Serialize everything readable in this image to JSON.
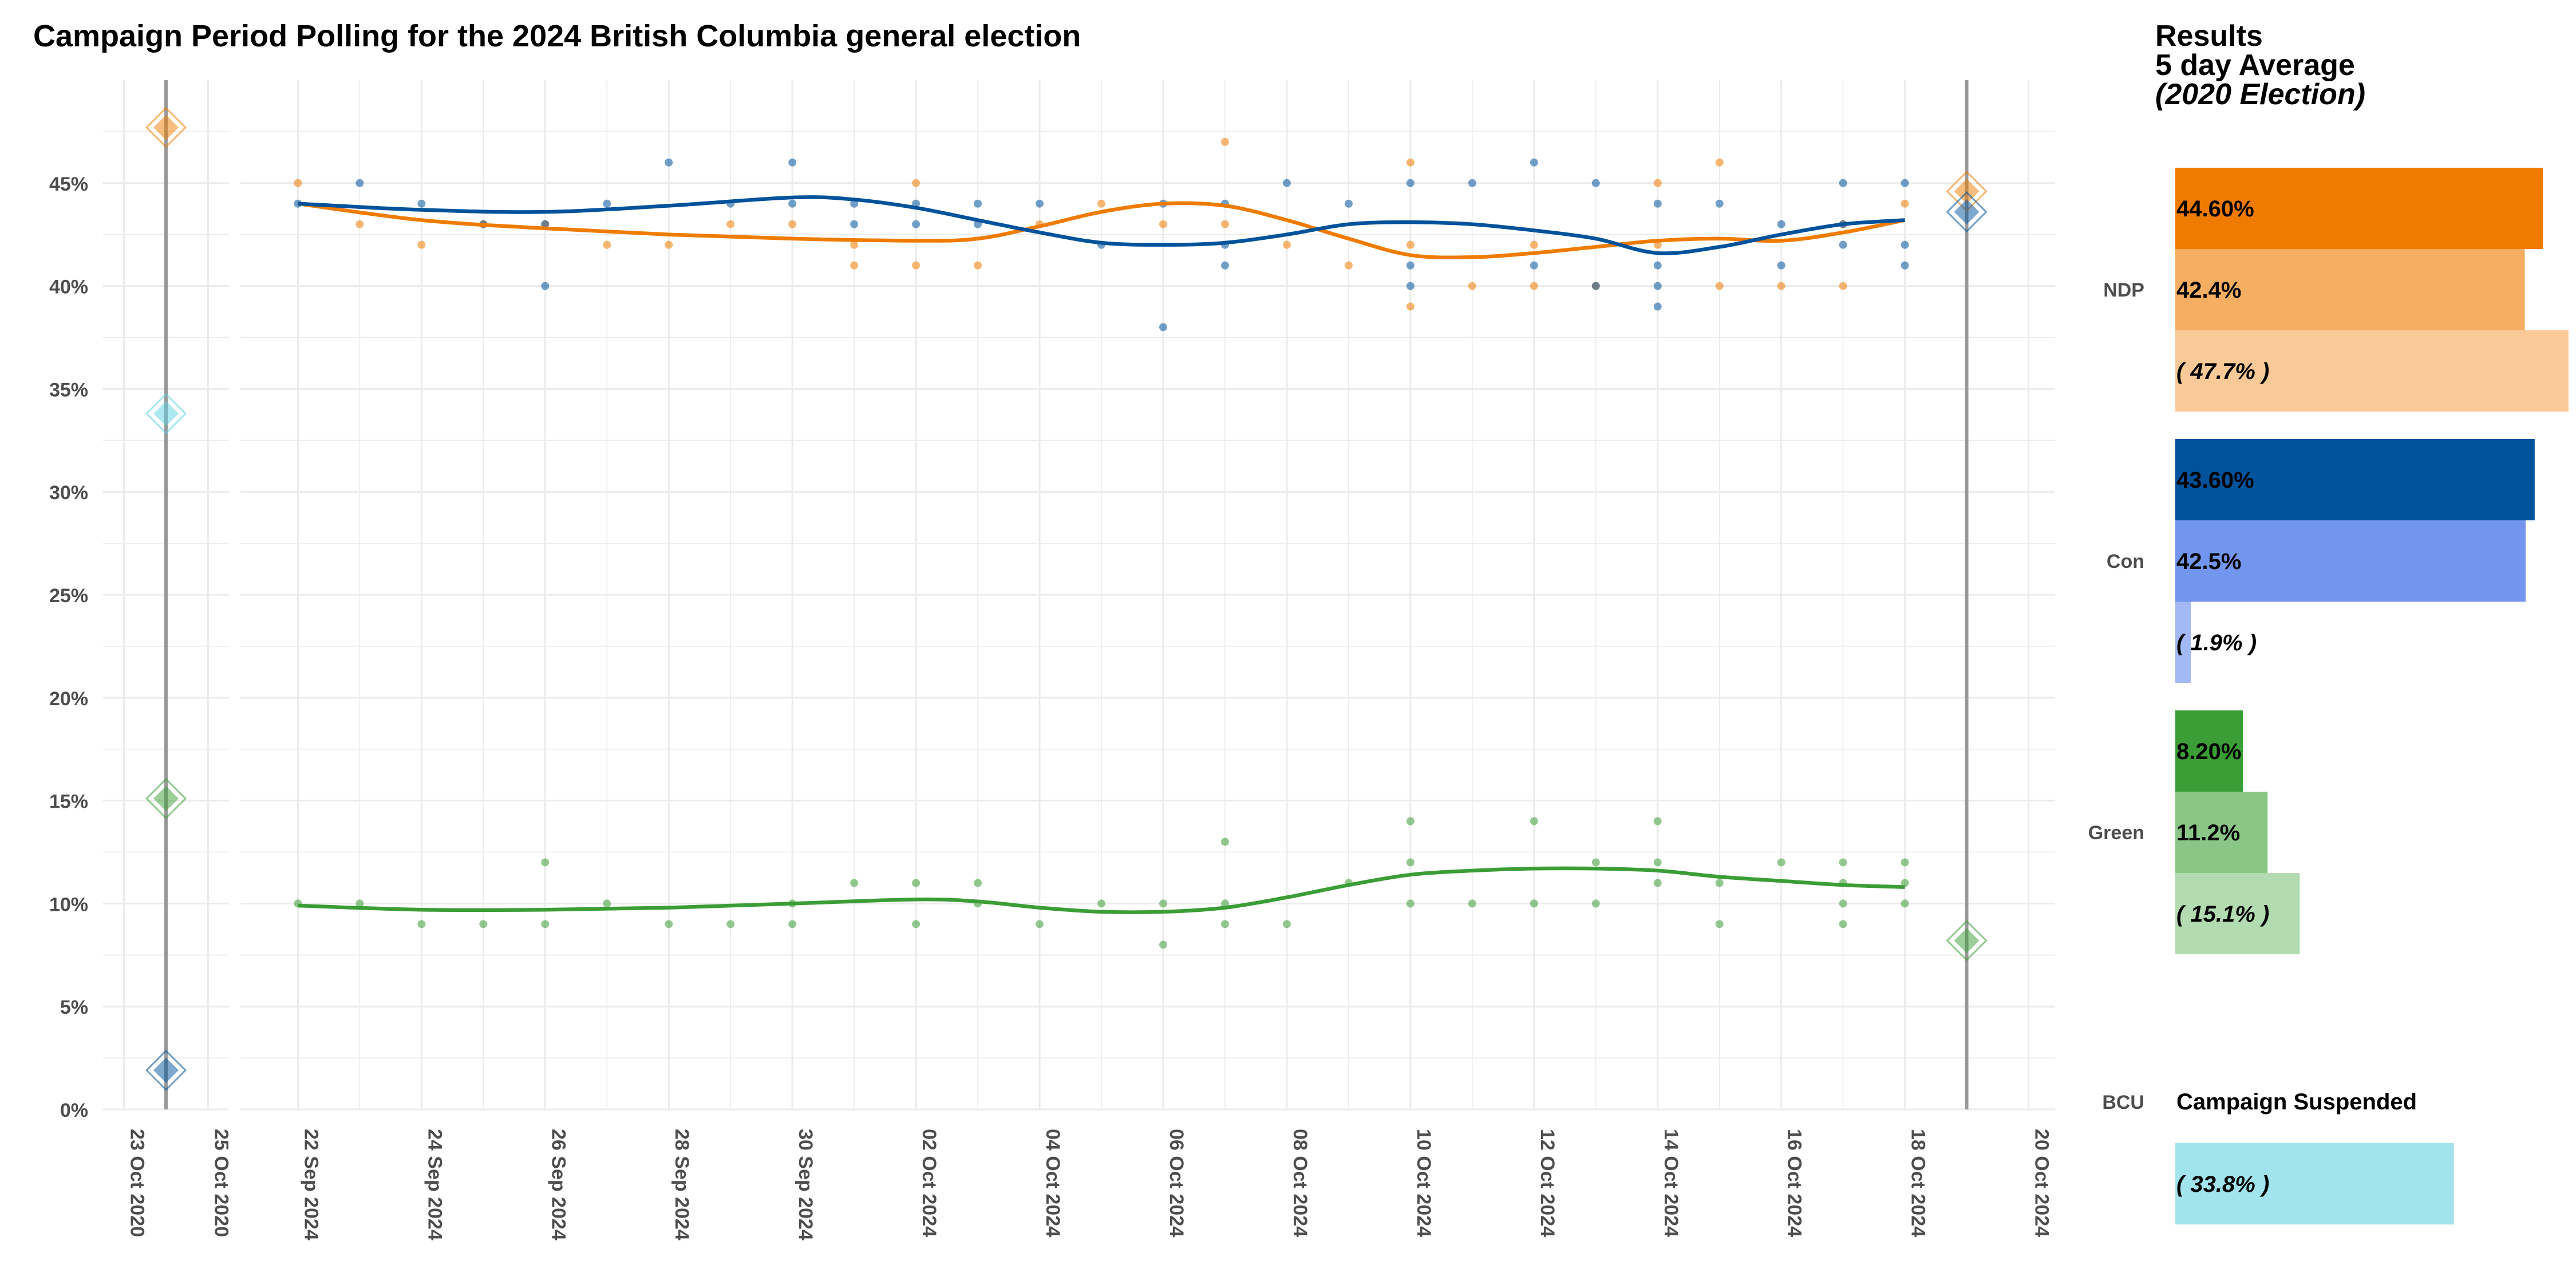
{
  "title": "Campaign Period Polling for the 2024 British Columbia general election",
  "colors": {
    "ndp": "#ef7b00",
    "con": "#00529b",
    "green": "#3a9d35",
    "bcu": "#5cd2e2",
    "grid": "#ebebeb",
    "axis_text": "#4d4d4d",
    "vline": "#999999"
  },
  "chart_data": [
    {
      "type": "scatter",
      "name": "2020 Election panel",
      "x_tick_labels": [
        "23 Oct 2020",
        "25 Oct 2020"
      ],
      "election_date_label": "24 Oct 2020",
      "ylim": [
        0,
        50
      ],
      "y_tick_labels": [
        "0%",
        "5%",
        "10%",
        "15%",
        "20%",
        "25%",
        "30%",
        "35%",
        "40%",
        "45%"
      ],
      "points": [
        {
          "party": "NDP",
          "value": 47.7
        },
        {
          "party": "BCU",
          "value": 33.8
        },
        {
          "party": "Green",
          "value": 15.1
        },
        {
          "party": "Con",
          "value": 1.9
        }
      ]
    },
    {
      "type": "line",
      "name": "Campaign polling panel",
      "x_tick_labels": [
        "22 Sep 2024",
        "24 Sep 2024",
        "26 Sep 2024",
        "28 Sep 2024",
        "30 Sep 2024",
        "02 Oct 2024",
        "04 Oct 2024",
        "06 Oct 2024",
        "08 Oct 2024",
        "10 Oct 2024",
        "12 Oct 2024",
        "14 Oct 2024",
        "16 Oct 2024",
        "18 Oct 2024",
        "20 Oct 2024"
      ],
      "election_day": "19 Oct 2024",
      "ylim": [
        0,
        50
      ],
      "polls": {
        "NDP": [
          [
            "22 Sep 2024",
            45
          ],
          [
            "23 Sep 2024",
            43
          ],
          [
            "24 Sep 2024",
            42
          ],
          [
            "25 Sep 2024",
            43
          ],
          [
            "26 Sep 2024",
            43
          ],
          [
            "27 Sep 2024",
            42
          ],
          [
            "28 Sep 2024",
            42
          ],
          [
            "29 Sep 2024",
            43
          ],
          [
            "30 Sep 2024",
            43
          ],
          [
            "01 Oct 2024",
            42
          ],
          [
            "01 Oct 2024",
            41
          ],
          [
            "02 Oct 2024",
            45
          ],
          [
            "02 Oct 2024",
            41
          ],
          [
            "03 Oct 2024",
            41
          ],
          [
            "04 Oct 2024",
            43
          ],
          [
            "05 Oct 2024",
            44
          ],
          [
            "06 Oct 2024",
            43
          ],
          [
            "07 Oct 2024",
            47
          ],
          [
            "07 Oct 2024",
            43
          ],
          [
            "08 Oct 2024",
            42
          ],
          [
            "09 Oct 2024",
            41
          ],
          [
            "10 Oct 2024",
            46
          ],
          [
            "10 Oct 2024",
            42
          ],
          [
            "10 Oct 2024",
            39
          ],
          [
            "11 Oct 2024",
            40
          ],
          [
            "12 Oct 2024",
            42
          ],
          [
            "12 Oct 2024",
            40
          ],
          [
            "13 Oct 2024",
            40
          ],
          [
            "14 Oct 2024",
            45
          ],
          [
            "14 Oct 2024",
            42
          ],
          [
            "15 Oct 2024",
            46
          ],
          [
            "15 Oct 2024",
            40
          ],
          [
            "16 Oct 2024",
            40
          ],
          [
            "17 Oct 2024",
            43
          ],
          [
            "17 Oct 2024",
            40
          ],
          [
            "18 Oct 2024",
            44
          ]
        ],
        "Con": [
          [
            "22 Sep 2024",
            44
          ],
          [
            "23 Sep 2024",
            45
          ],
          [
            "24 Sep 2024",
            44
          ],
          [
            "25 Sep 2024",
            43
          ],
          [
            "26 Sep 2024",
            43
          ],
          [
            "26 Sep 2024",
            40
          ],
          [
            "27 Sep 2024",
            44
          ],
          [
            "28 Sep 2024",
            46
          ],
          [
            "29 Sep 2024",
            44
          ],
          [
            "30 Sep 2024",
            46
          ],
          [
            "30 Sep 2024",
            44
          ],
          [
            "01 Oct 2024",
            44
          ],
          [
            "01 Oct 2024",
            43
          ],
          [
            "02 Oct 2024",
            44
          ],
          [
            "02 Oct 2024",
            43
          ],
          [
            "03 Oct 2024",
            44
          ],
          [
            "03 Oct 2024",
            43
          ],
          [
            "04 Oct 2024",
            44
          ],
          [
            "05 Oct 2024",
            42
          ],
          [
            "06 Oct 2024",
            44
          ],
          [
            "06 Oct 2024",
            38
          ],
          [
            "07 Oct 2024",
            44
          ],
          [
            "07 Oct 2024",
            42
          ],
          [
            "07 Oct 2024",
            41
          ],
          [
            "08 Oct 2024",
            45
          ],
          [
            "09 Oct 2024",
            44
          ],
          [
            "10 Oct 2024",
            45
          ],
          [
            "10 Oct 2024",
            41
          ],
          [
            "10 Oct 2024",
            40
          ],
          [
            "11 Oct 2024",
            45
          ],
          [
            "12 Oct 2024",
            46
          ],
          [
            "12 Oct 2024",
            41
          ],
          [
            "13 Oct 2024",
            45
          ],
          [
            "13 Oct 2024",
            40
          ],
          [
            "14 Oct 2024",
            44
          ],
          [
            "14 Oct 2024",
            41
          ],
          [
            "14 Oct 2024",
            40
          ],
          [
            "14 Oct 2024",
            39
          ],
          [
            "15 Oct 2024",
            44
          ],
          [
            "16 Oct 2024",
            43
          ],
          [
            "16 Oct 2024",
            41
          ],
          [
            "17 Oct 2024",
            45
          ],
          [
            "17 Oct 2024",
            43
          ],
          [
            "17 Oct 2024",
            42
          ],
          [
            "18 Oct 2024",
            45
          ],
          [
            "18 Oct 2024",
            42
          ],
          [
            "18 Oct 2024",
            41
          ]
        ],
        "Green": [
          [
            "22 Sep 2024",
            10
          ],
          [
            "23 Sep 2024",
            10
          ],
          [
            "24 Sep 2024",
            9
          ],
          [
            "25 Sep 2024",
            9
          ],
          [
            "26 Sep 2024",
            12
          ],
          [
            "26 Sep 2024",
            9
          ],
          [
            "27 Sep 2024",
            10
          ],
          [
            "28 Sep 2024",
            9
          ],
          [
            "29 Sep 2024",
            9
          ],
          [
            "30 Sep 2024",
            10
          ],
          [
            "30 Sep 2024",
            9
          ],
          [
            "01 Oct 2024",
            11
          ],
          [
            "02 Oct 2024",
            11
          ],
          [
            "02 Oct 2024",
            9
          ],
          [
            "03 Oct 2024",
            11
          ],
          [
            "03 Oct 2024",
            10
          ],
          [
            "04 Oct 2024",
            9
          ],
          [
            "05 Oct 2024",
            10
          ],
          [
            "06 Oct 2024",
            10
          ],
          [
            "06 Oct 2024",
            8
          ],
          [
            "07 Oct 2024",
            13
          ],
          [
            "07 Oct 2024",
            10
          ],
          [
            "07 Oct 2024",
            9
          ],
          [
            "08 Oct 2024",
            9
          ],
          [
            "09 Oct 2024",
            11
          ],
          [
            "10 Oct 2024",
            14
          ],
          [
            "10 Oct 2024",
            12
          ],
          [
            "10 Oct 2024",
            10
          ],
          [
            "11 Oct 2024",
            10
          ],
          [
            "12 Oct 2024",
            14
          ],
          [
            "12 Oct 2024",
            10
          ],
          [
            "13 Oct 2024",
            12
          ],
          [
            "13 Oct 2024",
            10
          ],
          [
            "14 Oct 2024",
            14
          ],
          [
            "14 Oct 2024",
            12
          ],
          [
            "14 Oct 2024",
            11
          ],
          [
            "15 Oct 2024",
            11
          ],
          [
            "15 Oct 2024",
            9
          ],
          [
            "16 Oct 2024",
            12
          ],
          [
            "17 Oct 2024",
            12
          ],
          [
            "17 Oct 2024",
            11
          ],
          [
            "17 Oct 2024",
            10
          ],
          [
            "17 Oct 2024",
            9
          ],
          [
            "18 Oct 2024",
            12
          ],
          [
            "18 Oct 2024",
            11
          ],
          [
            "18 Oct 2024",
            10
          ]
        ]
      },
      "trends": {
        "NDP": [
          [
            "22 Sep 2024",
            44.0
          ],
          [
            "24 Sep 2024",
            43.2
          ],
          [
            "26 Sep 2024",
            42.8
          ],
          [
            "28 Sep 2024",
            42.5
          ],
          [
            "30 Sep 2024",
            42.3
          ],
          [
            "02 Oct 2024",
            42.2
          ],
          [
            "03 Oct 2024",
            42.3
          ],
          [
            "04 Oct 2024",
            42.9
          ],
          [
            "05 Oct 2024",
            43.6
          ],
          [
            "06 Oct 2024",
            44.0
          ],
          [
            "07 Oct 2024",
            43.9
          ],
          [
            "08 Oct 2024",
            43.2
          ],
          [
            "09 Oct 2024",
            42.3
          ],
          [
            "10 Oct 2024",
            41.5
          ],
          [
            "11 Oct 2024",
            41.4
          ],
          [
            "12 Oct 2024",
            41.6
          ],
          [
            "13 Oct 2024",
            41.9
          ],
          [
            "14 Oct 2024",
            42.2
          ],
          [
            "15 Oct 2024",
            42.3
          ],
          [
            "16 Oct 2024",
            42.2
          ],
          [
            "17 Oct 2024",
            42.6
          ],
          [
            "18 Oct 2024",
            43.2
          ]
        ],
        "Con": [
          [
            "22 Sep 2024",
            44.0
          ],
          [
            "24 Sep 2024",
            43.7
          ],
          [
            "26 Sep 2024",
            43.6
          ],
          [
            "28 Sep 2024",
            43.9
          ],
          [
            "30 Sep 2024",
            44.3
          ],
          [
            "01 Oct 2024",
            44.2
          ],
          [
            "02 Oct 2024",
            43.8
          ],
          [
            "03 Oct 2024",
            43.2
          ],
          [
            "04 Oct 2024",
            42.6
          ],
          [
            "05 Oct 2024",
            42.1
          ],
          [
            "06 Oct 2024",
            42.0
          ],
          [
            "07 Oct 2024",
            42.1
          ],
          [
            "08 Oct 2024",
            42.5
          ],
          [
            "09 Oct 2024",
            43.0
          ],
          [
            "10 Oct 2024",
            43.1
          ],
          [
            "11 Oct 2024",
            43.0
          ],
          [
            "12 Oct 2024",
            42.7
          ],
          [
            "13 Oct 2024",
            42.3
          ],
          [
            "14 Oct 2024",
            41.6
          ],
          [
            "15 Oct 2024",
            41.9
          ],
          [
            "16 Oct 2024",
            42.5
          ],
          [
            "17 Oct 2024",
            43.0
          ],
          [
            "18 Oct 2024",
            43.2
          ]
        ],
        "Green": [
          [
            "22 Sep 2024",
            9.9
          ],
          [
            "24 Sep 2024",
            9.7
          ],
          [
            "26 Sep 2024",
            9.7
          ],
          [
            "28 Sep 2024",
            9.8
          ],
          [
            "30 Sep 2024",
            10.0
          ],
          [
            "02 Oct 2024",
            10.2
          ],
          [
            "03 Oct 2024",
            10.1
          ],
          [
            "04 Oct 2024",
            9.8
          ],
          [
            "05 Oct 2024",
            9.6
          ],
          [
            "06 Oct 2024",
            9.6
          ],
          [
            "07 Oct 2024",
            9.8
          ],
          [
            "08 Oct 2024",
            10.3
          ],
          [
            "09 Oct 2024",
            10.9
          ],
          [
            "10 Oct 2024",
            11.4
          ],
          [
            "11 Oct 2024",
            11.6
          ],
          [
            "12 Oct 2024",
            11.7
          ],
          [
            "13 Oct 2024",
            11.7
          ],
          [
            "14 Oct 2024",
            11.6
          ],
          [
            "15 Oct 2024",
            11.3
          ],
          [
            "16 Oct 2024",
            11.1
          ],
          [
            "17 Oct 2024",
            10.9
          ],
          [
            "18 Oct 2024",
            10.8
          ]
        ]
      },
      "results_markers": [
        {
          "party": "NDP",
          "value": 44.6
        },
        {
          "party": "Con",
          "value": 43.6
        },
        {
          "party": "Green",
          "value": 8.2
        }
      ]
    },
    {
      "type": "bar",
      "name": "Results panel",
      "title_lines": [
        "Results",
        "5 day Average",
        "(2020 Election)"
      ],
      "xlim": [
        0,
        50
      ],
      "categories": [
        "NDP",
        "Con",
        "Green",
        "BCU"
      ],
      "bars": {
        "NDP": [
          {
            "kind": "result",
            "value": 44.6,
            "label": "44.60%"
          },
          {
            "kind": "average",
            "value": 42.4,
            "label": "42.4%"
          },
          {
            "kind": "previous",
            "value": 47.7,
            "label": "( 47.7% )"
          }
        ],
        "Con": [
          {
            "kind": "result",
            "value": 43.6,
            "label": "43.60%"
          },
          {
            "kind": "average",
            "value": 42.5,
            "label": "42.5%"
          },
          {
            "kind": "previous",
            "value": 1.9,
            "label": "( 1.9% )"
          }
        ],
        "Green": [
          {
            "kind": "result",
            "value": 8.2,
            "label": "8.20%"
          },
          {
            "kind": "average",
            "value": 11.2,
            "label": "11.2%"
          },
          {
            "kind": "previous",
            "value": 15.1,
            "label": "( 15.1% )"
          }
        ],
        "BCU": [
          {
            "kind": "note",
            "value": null,
            "label": "Campaign Suspended"
          },
          {
            "kind": "previous",
            "value": 33.8,
            "label": "( 33.8% )"
          }
        ]
      },
      "bar_colors": {
        "NDP": [
          "#ef7b00",
          "#f5ae62",
          "#f9ca98"
        ],
        "Con": [
          "#00529b",
          "#7295ed",
          "#a3b9f5"
        ],
        "Green": [
          "#3a9d35",
          "#8ac787",
          "#b3dbb1"
        ],
        "BCU": [
          null,
          "#a1e4ec"
        ]
      }
    }
  ]
}
